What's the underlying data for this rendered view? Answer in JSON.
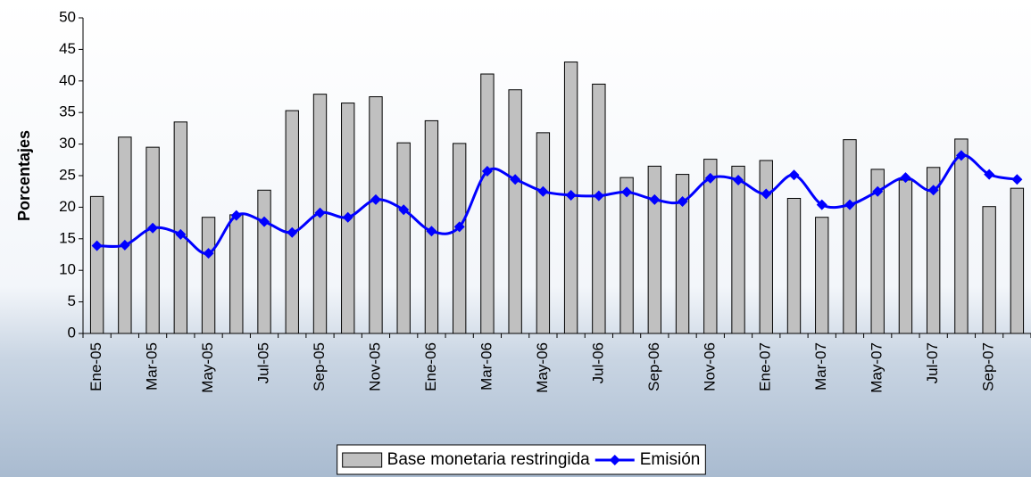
{
  "chart_data": {
    "type": "bar",
    "y_label": "Porcentajes",
    "categories": [
      "Ene-05",
      null,
      "Mar-05",
      null,
      "May-05",
      null,
      "Jul-05",
      null,
      "Sep-05",
      null,
      "Nov-05",
      null,
      "Ene-06",
      null,
      "Mar-06",
      null,
      "May-06",
      null,
      "Jul-06",
      null,
      "Sep-06",
      null,
      "Nov-06",
      null,
      "Ene-07",
      null,
      "Mar-07",
      null,
      "May-07",
      null,
      "Jul-07",
      null,
      "Sep-07",
      null
    ],
    "series": [
      {
        "name": "Base monetaria restringida",
        "type": "bar",
        "color": "#c0c0c0",
        "values": [
          21.7,
          31.1,
          29.5,
          33.5,
          18.4,
          18.8,
          22.7,
          35.3,
          37.9,
          36.5,
          37.5,
          30.2,
          33.7,
          30.1,
          41.1,
          38.6,
          31.8,
          43.0,
          39.5,
          24.7,
          26.5,
          25.2,
          27.6,
          26.5,
          27.4,
          21.4,
          18.4,
          30.7,
          26.0,
          24.3,
          26.3,
          30.8,
          20.1,
          23.0
        ]
      },
      {
        "name": "Emisión",
        "type": "line",
        "color": "#0000ff",
        "values": [
          13.9,
          14.0,
          16.7,
          15.7,
          12.7,
          18.7,
          17.7,
          16.0,
          19.1,
          18.4,
          21.2,
          19.6,
          16.2,
          16.9,
          25.7,
          24.4,
          22.5,
          21.9,
          21.8,
          22.4,
          21.2,
          20.9,
          24.6,
          24.3,
          22.1,
          25.1,
          20.4,
          20.4,
          22.5,
          24.7,
          22.7,
          28.2,
          25.2,
          24.4
        ]
      }
    ],
    "ylim": [
      0,
      50
    ],
    "yticks": [
      0,
      5,
      10,
      15,
      20,
      25,
      30,
      35,
      40,
      45,
      50
    ],
    "legend": "bottom"
  }
}
